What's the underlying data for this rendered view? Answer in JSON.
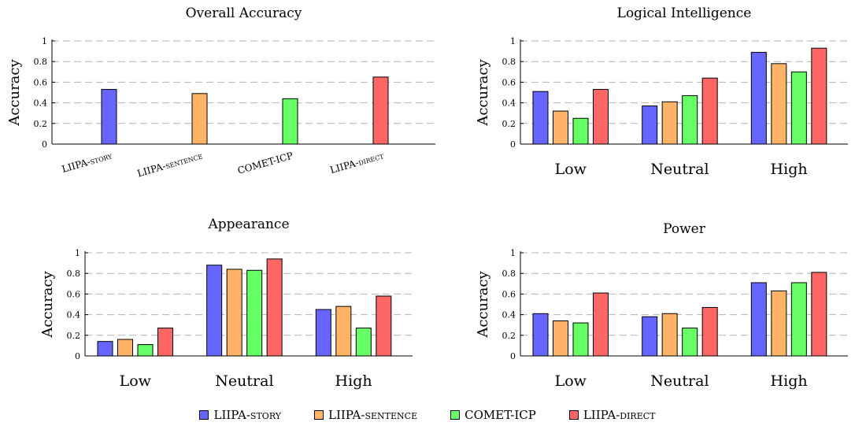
{
  "series": [
    {
      "name": "LIIPA-",
      "name_sc": "story",
      "color": "#6666ff"
    },
    {
      "name": "LIIPA-",
      "name_sc": "sentence",
      "color": "#ffb366"
    },
    {
      "name": "COMET-ICP",
      "name_sc": "",
      "color": "#66ff66"
    },
    {
      "name": "LIIPA-",
      "name_sc": "direct",
      "color": "#ff6666"
    }
  ],
  "chart_data": [
    {
      "type": "bar",
      "title": "Overall Accuracy",
      "ylabel": "Accuracy",
      "ylim": [
        0,
        1
      ],
      "yticks": [
        "0",
        "0.2",
        "0.4",
        "0.6",
        "0.8",
        "1"
      ],
      "categories": [
        "LIIPA-story",
        "LIIPA-sentence",
        "COMET-ICP",
        "LIIPA-direct"
      ],
      "values": [
        0.53,
        0.49,
        0.44,
        0.65
      ],
      "grid": "y-dashed"
    },
    {
      "type": "bar",
      "title": "Logical Intelligence",
      "ylabel": "Accuracy",
      "ylim": [
        0,
        1
      ],
      "yticks": [
        "0",
        "0.2",
        "0.4",
        "0.6",
        "0.8",
        "1"
      ],
      "categories": [
        "Low",
        "Neutral",
        "High"
      ],
      "series": [
        {
          "name": "LIIPA-story",
          "values": [
            0.51,
            0.37,
            0.89
          ]
        },
        {
          "name": "LIIPA-sentence",
          "values": [
            0.32,
            0.41,
            0.78
          ]
        },
        {
          "name": "COMET-ICP",
          "values": [
            0.25,
            0.47,
            0.7
          ]
        },
        {
          "name": "LIIPA-direct",
          "values": [
            0.53,
            0.64,
            0.93
          ]
        }
      ],
      "grid": "y-dashed"
    },
    {
      "type": "bar",
      "title": "Appearance",
      "ylabel": "Accuracy",
      "ylim": [
        0,
        1
      ],
      "yticks": [
        "0",
        "0.2",
        "0.4",
        "0.6",
        "0.8",
        "1"
      ],
      "categories": [
        "Low",
        "Neutral",
        "High"
      ],
      "series": [
        {
          "name": "LIIPA-story",
          "values": [
            0.14,
            0.88,
            0.45
          ]
        },
        {
          "name": "LIIPA-sentence",
          "values": [
            0.16,
            0.84,
            0.48
          ]
        },
        {
          "name": "COMET-ICP",
          "values": [
            0.11,
            0.83,
            0.27
          ]
        },
        {
          "name": "LIIPA-direct",
          "values": [
            0.27,
            0.94,
            0.58
          ]
        }
      ],
      "grid": "y-dashed"
    },
    {
      "type": "bar",
      "title": "Power",
      "ylabel": "Accuracy",
      "ylim": [
        0,
        1
      ],
      "yticks": [
        "0",
        "0.2",
        "0.4",
        "0.6",
        "0.8",
        "1"
      ],
      "categories": [
        "Low",
        "Neutral",
        "High"
      ],
      "series": [
        {
          "name": "LIIPA-story",
          "values": [
            0.41,
            0.38,
            0.71
          ]
        },
        {
          "name": "LIIPA-sentence",
          "values": [
            0.34,
            0.41,
            0.63
          ]
        },
        {
          "name": "COMET-ICP",
          "values": [
            0.32,
            0.27,
            0.71
          ]
        },
        {
          "name": "LIIPA-direct",
          "values": [
            0.61,
            0.47,
            0.81
          ]
        }
      ],
      "grid": "y-dashed"
    }
  ]
}
